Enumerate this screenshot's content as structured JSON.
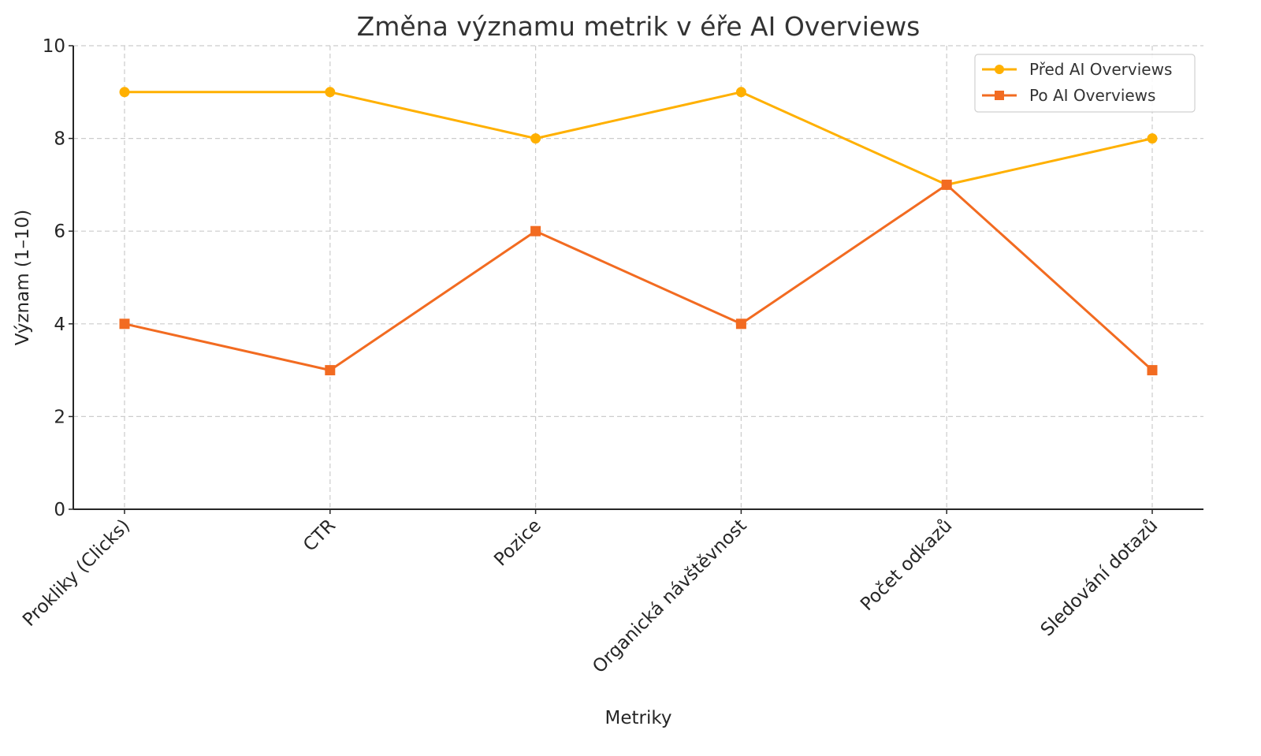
{
  "chart_data": {
    "type": "line",
    "title": "Změna významu metrik v éře AI Overviews",
    "xlabel": "Metriky",
    "ylabel": "Význam (1–10)",
    "ylim": [
      0,
      10
    ],
    "yticks": [
      "0",
      "2",
      "4",
      "6",
      "8",
      "10"
    ],
    "grid": true,
    "legend_position": "upper right",
    "categories": [
      "Prokliky (Clicks)",
      "CTR",
      "Pozice",
      "Organická návštěvnost",
      "Počet odkazů",
      "Sledování dotazů"
    ],
    "series": [
      {
        "name": "Před AI Overviews",
        "marker": "circle",
        "color": "#FFB000",
        "values": [
          9,
          9,
          8,
          9,
          7,
          8
        ]
      },
      {
        "name": "Po AI Overviews",
        "marker": "square",
        "color": "#F26B21",
        "values": [
          4,
          3,
          6,
          4,
          7,
          3
        ]
      }
    ]
  }
}
